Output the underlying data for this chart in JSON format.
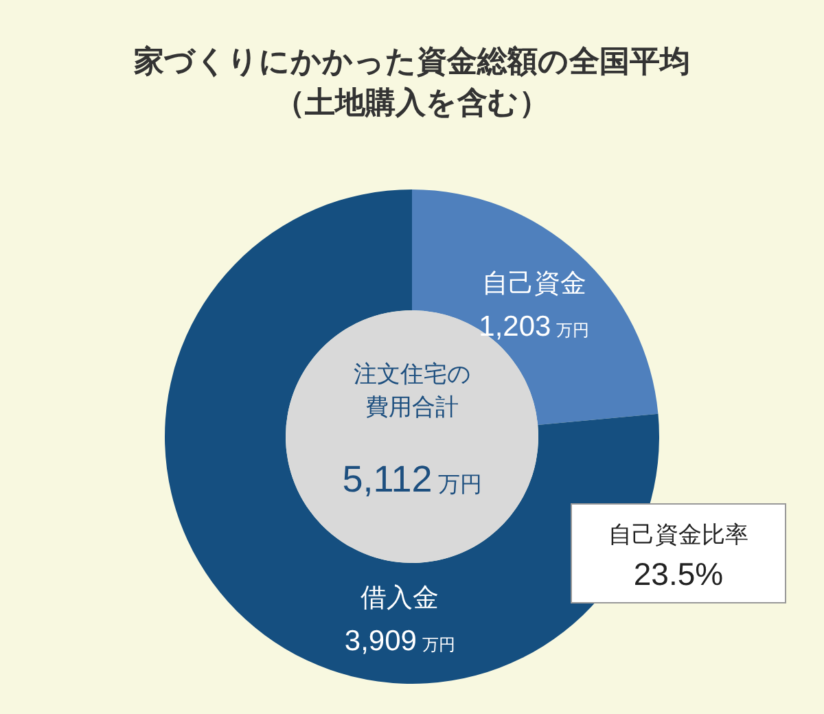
{
  "chart_data": {
    "type": "donut",
    "title": "家づくりにかかった資金総額の全国平均",
    "subtitle": "（土地購入を含む）",
    "categories": [
      "自己資金",
      "借入金"
    ],
    "values": [
      1203,
      3909
    ],
    "colors": [
      "#4f80bd",
      "#154f80"
    ],
    "value_labels": [
      "1,203万円",
      "3,909万円"
    ],
    "annotations": [
      "注文住宅の",
      "費用合計",
      "5,112万円",
      "自己資金比率",
      "23.5%"
    ]
  }
}
